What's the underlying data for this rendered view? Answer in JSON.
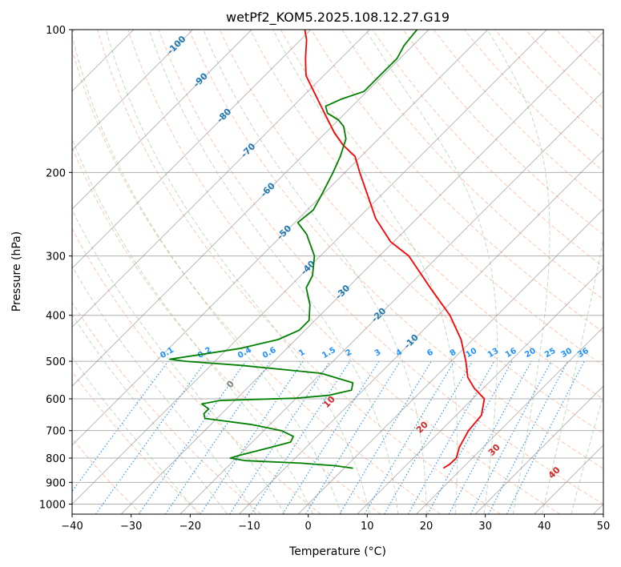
{
  "chart_data": {
    "type": "skew-t log-p sounding",
    "title": "wetPf2_KOM5.2025.108.12.27.G19",
    "xlabel": "Temperature (°C)",
    "ylabel": "Pressure (hPa)",
    "xlim": [
      -40,
      50
    ],
    "ylim": [
      1050,
      100
    ],
    "y_scale": "log",
    "grid": true,
    "x_ticks": [
      "−40",
      "−30",
      "−20",
      "−10",
      "0",
      "10",
      "20",
      "30",
      "40",
      "50"
    ],
    "y_ticks": [
      "100",
      "200",
      "300",
      "400",
      "500",
      "600",
      "700",
      "800",
      "900",
      "1000"
    ],
    "colors": {
      "temperature": "#ff0000",
      "dewpoint": "#008000",
      "isotherm": "#808080",
      "dry_adiabat": "#ffa07a",
      "moist_adiabat": "#8fbc8f",
      "mixing_ratio": "#1e90ff",
      "isotherm_label": "#1f77b4",
      "moist_label": "#d62728",
      "dry_adiabat_tan": "#d2b48c"
    },
    "isotherm_labels": [
      "-100",
      "-90",
      "-80",
      "-70",
      "-60",
      "-50",
      "-40",
      "-30",
      "-20",
      "-10"
    ],
    "mixing_ratio_labels": [
      "0.1",
      "0.2",
      "0.4",
      "0.6",
      "1",
      "1.5",
      "2",
      "3",
      "4",
      "6",
      "8",
      "10",
      "13",
      "16",
      "20",
      "25",
      "30",
      "36"
    ],
    "moist_adiabat_labels": [
      "0",
      "10",
      "20",
      "30",
      "40"
    ],
    "series": [
      {
        "values": [
          {
            "p": 840,
            "t": 16.8
          },
          {
            "p": 825,
            "t": 17.2
          },
          {
            "p": 800,
            "t": 17.3
          },
          {
            "p": 760,
            "t": 16.0
          },
          {
            "p": 700,
            "t": 14.7
          },
          {
            "p": 650,
            "t": 14.3
          },
          {
            "p": 600,
            "t": 12.0
          },
          {
            "p": 570,
            "t": 8.5
          },
          {
            "p": 540,
            "t": 5.5
          },
          {
            "p": 500,
            "t": 2.5
          },
          {
            "p": 450,
            "t": -2.0
          },
          {
            "p": 400,
            "t": -8.0
          },
          {
            "p": 350,
            "t": -16.0
          },
          {
            "p": 300,
            "t": -25.0
          },
          {
            "p": 280,
            "t": -30.5
          },
          {
            "p": 250,
            "t": -37.0
          },
          {
            "p": 220,
            "t": -43.0
          },
          {
            "p": 200,
            "t": -47.5
          },
          {
            "p": 185,
            "t": -51.0
          },
          {
            "p": 175,
            "t": -55.0
          },
          {
            "p": 165,
            "t": -58.5
          },
          {
            "p": 150,
            "t": -63.5
          },
          {
            "p": 135,
            "t": -69.0
          },
          {
            "p": 125,
            "t": -73.0
          },
          {
            "p": 115,
            "t": -76.0
          },
          {
            "p": 105,
            "t": -79.0
          },
          {
            "p": 100,
            "t": -81.0
          }
        ]
      },
      {
        "values": [
          {
            "p": 840,
            "t": 1.5
          },
          {
            "p": 830,
            "t": -2.0
          },
          {
            "p": 820,
            "t": -8.0
          },
          {
            "p": 810,
            "t": -18.0
          },
          {
            "p": 800,
            "t": -21.0
          },
          {
            "p": 790,
            "t": -20.0
          },
          {
            "p": 760,
            "t": -16.0
          },
          {
            "p": 740,
            "t": -13.5
          },
          {
            "p": 720,
            "t": -14.0
          },
          {
            "p": 700,
            "t": -17.0
          },
          {
            "p": 680,
            "t": -23.0
          },
          {
            "p": 660,
            "t": -32.0
          },
          {
            "p": 645,
            "t": -33.0
          },
          {
            "p": 630,
            "t": -33.0
          },
          {
            "p": 615,
            "t": -35.0
          },
          {
            "p": 605,
            "t": -32.5
          },
          {
            "p": 598,
            "t": -20.0
          },
          {
            "p": 590,
            "t": -15.0
          },
          {
            "p": 575,
            "t": -12.0
          },
          {
            "p": 555,
            "t": -13.0
          },
          {
            "p": 530,
            "t": -20.0
          },
          {
            "p": 510,
            "t": -35.0
          },
          {
            "p": 500,
            "t": -45.0
          },
          {
            "p": 495,
            "t": -48.0
          },
          {
            "p": 485,
            "t": -44.0
          },
          {
            "p": 470,
            "t": -38.0
          },
          {
            "p": 450,
            "t": -33.0
          },
          {
            "p": 430,
            "t": -31.0
          },
          {
            "p": 410,
            "t": -31.0
          },
          {
            "p": 380,
            "t": -33.5
          },
          {
            "p": 350,
            "t": -37.0
          },
          {
            "p": 330,
            "t": -38.0
          },
          {
            "p": 300,
            "t": -41.0
          },
          {
            "p": 270,
            "t": -46.0
          },
          {
            "p": 255,
            "t": -49.5
          },
          {
            "p": 240,
            "t": -49.0
          },
          {
            "p": 225,
            "t": -50.0
          },
          {
            "p": 200,
            "t": -52.0
          },
          {
            "p": 185,
            "t": -53.5
          },
          {
            "p": 170,
            "t": -55.5
          },
          {
            "p": 160,
            "t": -58.0
          },
          {
            "p": 155,
            "t": -60.0
          },
          {
            "p": 150,
            "t": -63.0
          },
          {
            "p": 145,
            "t": -64.5
          },
          {
            "p": 140,
            "t": -63.0
          },
          {
            "p": 135,
            "t": -60.5
          },
          {
            "p": 125,
            "t": -60.5
          },
          {
            "p": 115,
            "t": -60.5
          },
          {
            "p": 108,
            "t": -61.5
          },
          {
            "p": 100,
            "t": -62.0
          }
        ]
      }
    ]
  }
}
